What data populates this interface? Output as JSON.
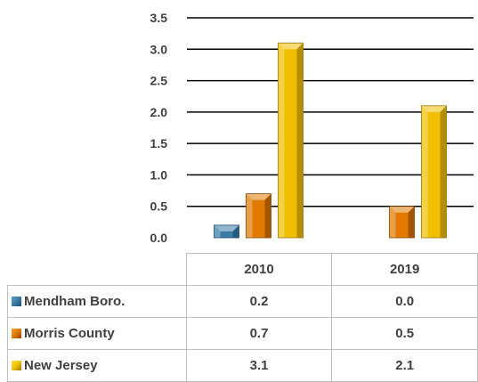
{
  "chart_data": {
    "type": "bar",
    "categories": [
      "2010",
      "2019"
    ],
    "series": [
      {
        "name": "Mendham Boro.",
        "values": [
          0.2,
          0.0
        ],
        "color": "#3a7ca5",
        "dark": "#1f4e6e"
      },
      {
        "name": "Morris County",
        "values": [
          0.7,
          0.5
        ],
        "color": "#e07b00",
        "dark": "#8a4600"
      },
      {
        "name": "New Jersey",
        "values": [
          3.1,
          2.1
        ],
        "color": "#f0c000",
        "dark": "#9a7800"
      }
    ],
    "ylim": [
      0,
      3.5
    ],
    "yticks": [
      "0.0",
      "0.5",
      "1.0",
      "1.5",
      "2.0",
      "2.5",
      "3.0",
      "3.5"
    ],
    "grid": true,
    "legend": "data-table-below",
    "table": {
      "headers": [
        "2010",
        "2019"
      ],
      "rows": [
        {
          "label": "Mendham Boro.",
          "cells": [
            "0.2",
            "0.0"
          ]
        },
        {
          "label": "Morris County",
          "cells": [
            "0.7",
            "0.5"
          ]
        },
        {
          "label": "New Jersey",
          "cells": [
            "3.1",
            "2.1"
          ]
        }
      ]
    }
  }
}
